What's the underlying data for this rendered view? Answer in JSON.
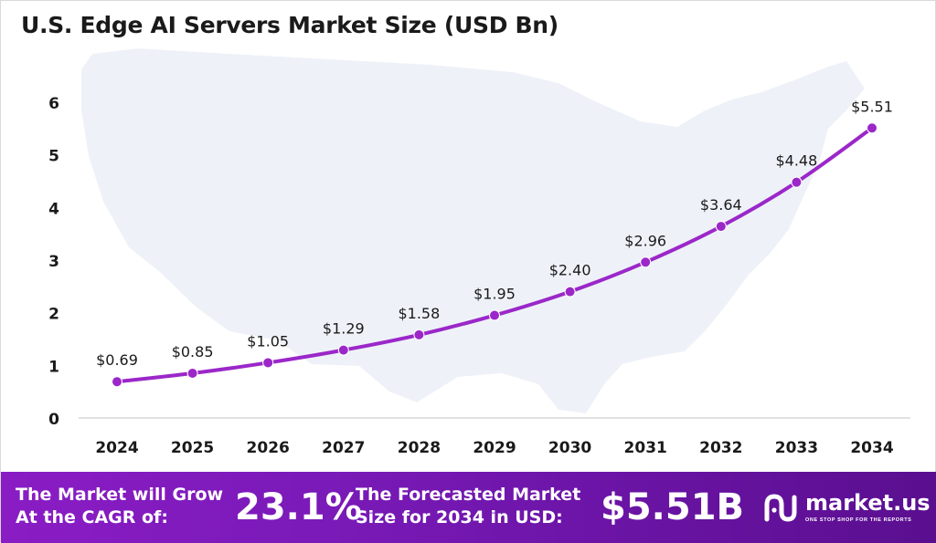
{
  "chart_data": {
    "type": "line",
    "title": "U.S. Edge AI Servers Market Size (USD Bn)",
    "x": [
      "2024",
      "2025",
      "2026",
      "2027",
      "2028",
      "2029",
      "2030",
      "2031",
      "2032",
      "2033",
      "2034"
    ],
    "y": [
      0.69,
      0.85,
      1.05,
      1.29,
      1.58,
      1.95,
      2.4,
      2.96,
      3.64,
      4.48,
      5.51
    ],
    "data_labels": [
      "$0.69",
      "$0.85",
      "$1.05",
      "$1.29",
      "$1.58",
      "$1.95",
      "$2.40",
      "$2.96",
      "$3.64",
      "$4.48",
      "$5.51"
    ],
    "yticks": [
      "0",
      "1",
      "2",
      "3",
      "4",
      "5",
      "6"
    ],
    "ylim": [
      0,
      6
    ],
    "xlabel": "",
    "ylabel": "",
    "grid": false,
    "legend": "none",
    "line_color": "#9b27c9",
    "background_motif": "usa-map"
  },
  "footer": {
    "cagr_label": "The Market will Grow At the CAGR of:",
    "cagr_value": "23.1%",
    "forecast_label": "The Forecasted Market Size for 2034 in USD:",
    "forecast_value": "$5.51B",
    "brand_name": "market.us",
    "brand_tagline": "ONE STOP SHOP FOR THE REPORTS",
    "background_color": "#7a1ab8"
  }
}
